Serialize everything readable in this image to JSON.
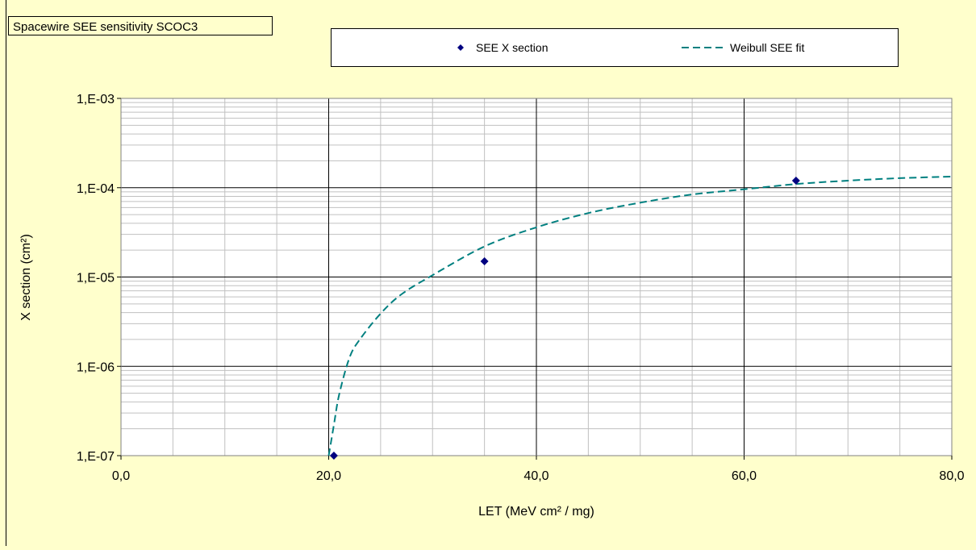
{
  "colors": {
    "background": "#ffffcc",
    "plot_area": "#ffffff",
    "marker": "#000080",
    "fit_line": "#008080",
    "major_grid": "#000000",
    "minor_grid": "#c0c0c0"
  },
  "chart_data": {
    "type": "scatter",
    "title": "Spacewire SEE sensitivity SCOC3",
    "xlabel": "LET (MeV cm² / mg)",
    "ylabel": "X section (cm²)",
    "xlim": [
      0,
      80
    ],
    "ylim": [
      1e-07,
      0.001
    ],
    "y_scale": "log",
    "grid": true,
    "legend_position": "top",
    "x_ticks": [
      {
        "value": 0,
        "label": "0,0"
      },
      {
        "value": 20,
        "label": "20,0"
      },
      {
        "value": 40,
        "label": "40,0"
      },
      {
        "value": 60,
        "label": "60,0"
      },
      {
        "value": 80,
        "label": "80,0"
      }
    ],
    "y_ticks": [
      {
        "value": 1e-07,
        "label": "1,E-07"
      },
      {
        "value": 1e-06,
        "label": "1,E-06"
      },
      {
        "value": 1e-05,
        "label": "1,E-05"
      },
      {
        "value": 0.0001,
        "label": "1,E-04"
      },
      {
        "value": 0.001,
        "label": "1,E-03"
      }
    ],
    "series": [
      {
        "name": "SEE X section",
        "kind": "markers",
        "marker": "diamond",
        "points": [
          {
            "x": 20.5,
            "y": 1e-07
          },
          {
            "x": 35.0,
            "y": 1.5e-05
          },
          {
            "x": 65.0,
            "y": 0.00012
          }
        ]
      },
      {
        "name": "Weibull SEE fit",
        "kind": "dashed-line",
        "points": [
          {
            "x": 20.0,
            "y": 1e-07
          },
          {
            "x": 20.5,
            "y": 2.2e-07
          },
          {
            "x": 21.0,
            "y": 4.8e-07
          },
          {
            "x": 22.0,
            "y": 1.25e-06
          },
          {
            "x": 23.0,
            "y": 2e-06
          },
          {
            "x": 25.0,
            "y": 3.9e-06
          },
          {
            "x": 27.0,
            "y": 6.4e-06
          },
          {
            "x": 30.0,
            "y": 1.05e-05
          },
          {
            "x": 35.0,
            "y": 2.2e-05
          },
          {
            "x": 40.0,
            "y": 3.6e-05
          },
          {
            "x": 45.0,
            "y": 5.2e-05
          },
          {
            "x": 50.0,
            "y": 6.8e-05
          },
          {
            "x": 55.0,
            "y": 8.4e-05
          },
          {
            "x": 60.0,
            "y": 9.6e-05
          },
          {
            "x": 65.0,
            "y": 0.00011
          },
          {
            "x": 70.0,
            "y": 0.00012
          },
          {
            "x": 75.0,
            "y": 0.000128
          },
          {
            "x": 80.0,
            "y": 0.000133
          }
        ]
      }
    ]
  }
}
